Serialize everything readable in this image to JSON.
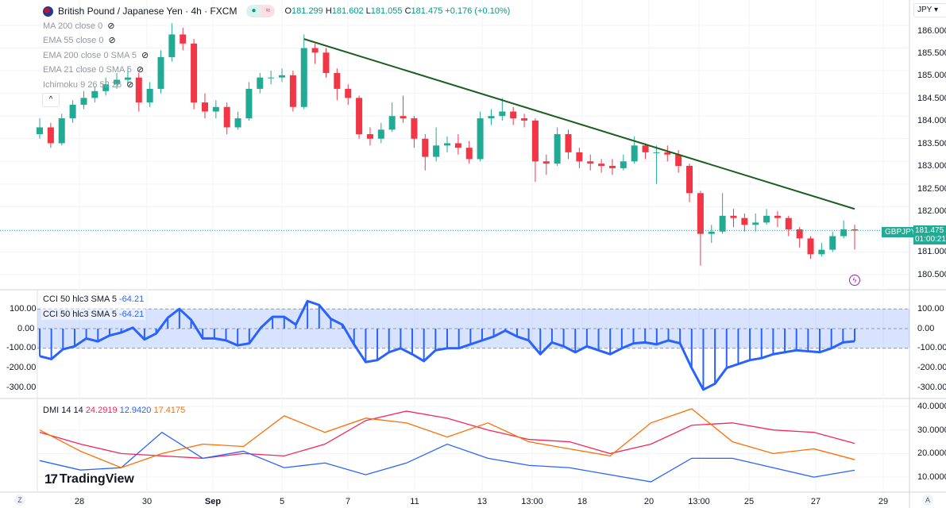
{
  "header": {
    "symbol_title": "British Pound / Japanese Yen · 4h · FXCM",
    "open_label": "O",
    "open": "181.299",
    "high_label": "H",
    "high": "181.602",
    "low_label": "L",
    "low": "181.055",
    "close_label": "C",
    "close": "181.475",
    "change": "+0.176 (+0.10%)",
    "market_status_icon": "dot-icon",
    "data_icon": "wave-icon"
  },
  "indicators": [
    {
      "label": "MA 200 close 0"
    },
    {
      "label": "EMA 55 close 0"
    },
    {
      "label": "EMA 200 close 0 SMA 5"
    },
    {
      "label": "EMA 21 close 0 SMA 5"
    },
    {
      "label": "Ichimoku 9 26 52 26"
    }
  ],
  "price_axis": {
    "currency": "JPY",
    "ticks": [
      "186.000",
      "185.500",
      "185.000",
      "184.500",
      "184.000",
      "183.500",
      "183.000",
      "182.500",
      "182.000",
      "181.000",
      "180.500"
    ],
    "symbol_tag": "GBPJPY",
    "last_price": "181.475",
    "countdown": "01:00:21"
  },
  "cci_pane": {
    "legend": "CCI 50 hlc3 SMA 5",
    "value": "-64.21",
    "ticks": [
      "100.00",
      "0.00",
      "-100.00",
      "-200.00",
      "-300.00"
    ]
  },
  "dmi_pane": {
    "legend": "DMI 14 14",
    "plus_di": "24.2919",
    "minus_di": "12.9420",
    "adx": "17.4175",
    "ticks": [
      "40.0000",
      "30.0000",
      "20.0000",
      "10.0000"
    ]
  },
  "time_axis": [
    "28",
    "30",
    "Sep",
    "5",
    "7",
    "11",
    "13",
    "13:00",
    "18",
    "20",
    "13:00",
    "25",
    "27",
    "29"
  ],
  "bottom": {
    "z_label": "Z",
    "auto_label": "A"
  },
  "branding": "TradingView",
  "colors": {
    "up": "#22ab94",
    "down": "#f23645",
    "trendline": "#1b5e20",
    "cci": "#2962ff",
    "dmi_plus": "#f7255f",
    "dmi_minus": "#2962ff",
    "adx": "#ff6d00"
  },
  "chart_data": [
    {
      "type": "candlestick",
      "title": "British Pound / Japanese Yen · 4h · FXCM",
      "ylim": [
        180.3,
        186.3
      ],
      "first_open": 183.6,
      "close": [
        183.75,
        183.4,
        183.95,
        184.25,
        184.4,
        184.55,
        184.7,
        184.8,
        184.85,
        184.3,
        184.6,
        185.3,
        185.8,
        185.6,
        184.3,
        184.1,
        184.2,
        183.75,
        183.95,
        184.6,
        184.85,
        184.85,
        184.9,
        184.2,
        185.5,
        185.4,
        184.95,
        184.6,
        184.4,
        183.6,
        183.5,
        183.7,
        184.0,
        183.95,
        183.5,
        183.1,
        183.35,
        183.4,
        183.3,
        183.05,
        183.95,
        184.0,
        184.1,
        183.95,
        183.9,
        183.0,
        182.95,
        183.6,
        183.2,
        183.0,
        182.95,
        182.9,
        182.85,
        183.0,
        183.35,
        183.2,
        183.2,
        183.15,
        182.9,
        182.3,
        181.4,
        181.45,
        181.8,
        181.75,
        181.6,
        181.65,
        181.8,
        181.75,
        181.5,
        181.3,
        180.95,
        181.05,
        181.35,
        181.5,
        181.475
      ],
      "high": [
        183.95,
        183.85,
        184.05,
        184.35,
        184.55,
        184.65,
        184.85,
        184.95,
        185.1,
        184.95,
        184.75,
        185.45,
        186.05,
        185.95,
        185.7,
        184.5,
        184.35,
        184.3,
        184.1,
        184.75,
        184.95,
        185.0,
        185.05,
        185.0,
        185.8,
        185.6,
        185.5,
        185.05,
        184.7,
        184.45,
        183.75,
        183.85,
        184.3,
        184.45,
        184.0,
        183.6,
        183.75,
        183.55,
        183.6,
        183.45,
        184.1,
        184.15,
        184.4,
        184.2,
        184.05,
        183.95,
        183.15,
        183.75,
        183.7,
        183.3,
        183.15,
        183.05,
        183.05,
        183.15,
        183.55,
        183.4,
        183.35,
        183.35,
        183.25,
        182.95,
        182.35,
        181.6,
        182.3,
        181.95,
        181.85,
        181.85,
        181.95,
        181.9,
        181.8,
        181.55,
        181.35,
        181.2,
        181.45,
        181.7,
        181.602
      ],
      "low": [
        183.5,
        183.3,
        183.35,
        183.85,
        184.15,
        184.3,
        184.45,
        184.6,
        184.7,
        184.1,
        184.2,
        184.5,
        185.2,
        185.45,
        184.15,
        183.95,
        183.95,
        183.6,
        183.7,
        183.9,
        184.5,
        184.7,
        184.75,
        184.1,
        184.15,
        185.15,
        184.85,
        184.35,
        184.25,
        183.5,
        183.35,
        183.4,
        183.65,
        183.85,
        183.3,
        182.8,
        183.0,
        183.2,
        183.15,
        182.95,
        183.0,
        183.8,
        183.9,
        183.8,
        183.75,
        182.55,
        182.7,
        182.9,
        183.05,
        182.85,
        182.8,
        182.75,
        182.7,
        182.8,
        182.95,
        183.05,
        182.5,
        183.0,
        182.75,
        182.1,
        180.7,
        181.2,
        181.4,
        181.55,
        181.45,
        181.45,
        181.6,
        181.55,
        181.35,
        181.1,
        180.85,
        180.9,
        181.0,
        181.3,
        181.055
      ],
      "trendline": {
        "start_index": 24,
        "start_price": 185.7,
        "end_index": 74,
        "end_price": 181.95
      }
    },
    {
      "type": "line",
      "title": "CCI 50 hlc3 SMA 5",
      "ylim": [
        -340,
        160
      ],
      "band": [
        -100,
        100
      ],
      "values": [
        -140,
        -155,
        -105,
        -90,
        -50,
        -65,
        -35,
        -20,
        5,
        -55,
        -25,
        55,
        100,
        45,
        -50,
        -50,
        -60,
        -85,
        -75,
        5,
        60,
        60,
        20,
        140,
        120,
        50,
        20,
        -80,
        -170,
        -160,
        -120,
        -100,
        -130,
        -165,
        -110,
        -100,
        -100,
        -80,
        -60,
        -40,
        -10,
        -40,
        -60,
        -130,
        -70,
        -90,
        -120,
        -90,
        -110,
        -130,
        -100,
        -75,
        -70,
        -80,
        -60,
        -75,
        -200,
        -310,
        -280,
        -200,
        -180,
        -160,
        -150,
        -130,
        -120,
        -110,
        -115,
        -120,
        -100,
        -70,
        -64.21
      ]
    },
    {
      "type": "line",
      "title": "DMI 14 14",
      "ylim": [
        5,
        43
      ],
      "series": [
        {
          "name": "+DI",
          "values": [
            29,
            24,
            20,
            19,
            18,
            20,
            19,
            24,
            34,
            38,
            35,
            30,
            26,
            25,
            20,
            24,
            32,
            33,
            30,
            29,
            24.29
          ]
        },
        {
          "name": "-DI",
          "values": [
            17,
            13,
            14,
            29,
            18,
            21,
            14,
            16,
            11,
            16,
            24,
            18,
            15,
            14,
            11,
            8,
            18,
            18,
            14,
            10,
            12.94
          ]
        },
        {
          "name": "ADX",
          "values": [
            30,
            21,
            14,
            20,
            24,
            23,
            36,
            29,
            35,
            33,
            27,
            33,
            25,
            22,
            19,
            33,
            39,
            25,
            20,
            22,
            17.42
          ]
        }
      ]
    }
  ]
}
